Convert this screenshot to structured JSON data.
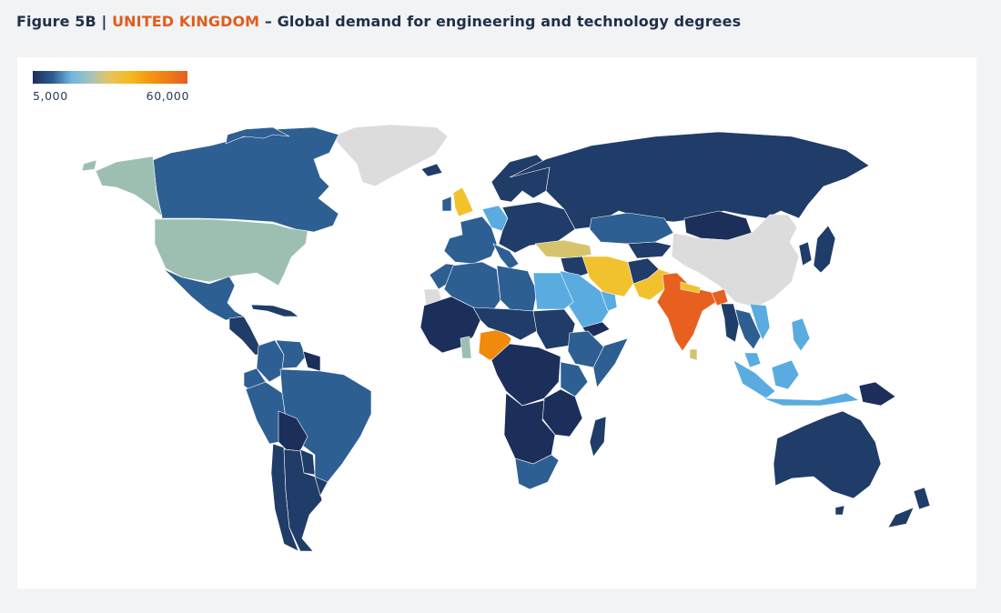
{
  "figure": {
    "label": "Figure 5B | ",
    "country": "UNITED KINGDOM",
    "subtitle": " – Global demand for engineering and technology degrees"
  },
  "legend": {
    "min_label": "5,000",
    "max_label": "60,000",
    "gradient_colors": [
      "#1c2f5a",
      "#2d5d92",
      "#6fb6e1",
      "#a8c4b8",
      "#e8c45a",
      "#f5b820",
      "#f39a10",
      "#ef7a18",
      "#e85c22"
    ]
  },
  "colors": {
    "no_data": "#dcdcdc",
    "darkest": "#1c2f5a",
    "dark_blue": "#203c68",
    "mid_blue": "#2e5f93",
    "light_blue": "#5aace0",
    "sage": "#9dbfb1",
    "mustard": "#d6c36e",
    "yellow": "#f2c12e",
    "orange": "#f08a0c",
    "red_orange": "#e8601f",
    "title_accent": "#e05d1c",
    "title_text": "#1f2f4a"
  },
  "map_data": {
    "type": "choropleth",
    "regions": [
      {
        "name": "Greenland",
        "class": "no_data"
      },
      {
        "name": "Canada",
        "class": "mid_blue"
      },
      {
        "name": "Alaska (USA)",
        "class": "sage"
      },
      {
        "name": "United States",
        "class": "sage"
      },
      {
        "name": "Mexico",
        "class": "mid_blue"
      },
      {
        "name": "Central America",
        "class": "dark_blue"
      },
      {
        "name": "Caribbean",
        "class": "dark_blue"
      },
      {
        "name": "Colombia",
        "class": "mid_blue"
      },
      {
        "name": "Venezuela",
        "class": "mid_blue"
      },
      {
        "name": "Guianas",
        "class": "darkest"
      },
      {
        "name": "Ecuador",
        "class": "mid_blue"
      },
      {
        "name": "Peru",
        "class": "mid_blue"
      },
      {
        "name": "Brazil",
        "class": "mid_blue"
      },
      {
        "name": "Bolivia",
        "class": "darkest"
      },
      {
        "name": "Paraguay",
        "class": "dark_blue"
      },
      {
        "name": "Chile",
        "class": "dark_blue"
      },
      {
        "name": "Argentina",
        "class": "dark_blue"
      },
      {
        "name": "Uruguay",
        "class": "dark_blue"
      },
      {
        "name": "United Kingdom",
        "class": "yellow"
      },
      {
        "name": "Ireland",
        "class": "mid_blue"
      },
      {
        "name": "Germany",
        "class": "light_blue"
      },
      {
        "name": "Western Europe",
        "class": "mid_blue"
      },
      {
        "name": "Scandinavia",
        "class": "dark_blue"
      },
      {
        "name": "Iceland",
        "class": "dark_blue"
      },
      {
        "name": "Eastern Europe",
        "class": "dark_blue"
      },
      {
        "name": "Russia",
        "class": "dark_blue"
      },
      {
        "name": "Turkey",
        "class": "mustard"
      },
      {
        "name": "Iran",
        "class": "yellow"
      },
      {
        "name": "Pakistan",
        "class": "yellow"
      },
      {
        "name": "Afghanistan",
        "class": "dark_blue"
      },
      {
        "name": "Kazakhstan",
        "class": "mid_blue"
      },
      {
        "name": "Central Asia",
        "class": "dark_blue"
      },
      {
        "name": "Mongolia",
        "class": "darkest"
      },
      {
        "name": "China",
        "class": "no_data"
      },
      {
        "name": "India",
        "class": "red_orange"
      },
      {
        "name": "Nepal",
        "class": "yellow"
      },
      {
        "name": "Bangladesh",
        "class": "red_orange"
      },
      {
        "name": "Sri Lanka",
        "class": "mustard"
      },
      {
        "name": "Myanmar",
        "class": "dark_blue"
      },
      {
        "name": "Thailand",
        "class": "mid_blue"
      },
      {
        "name": "Vietnam",
        "class": "light_blue"
      },
      {
        "name": "Malaysia",
        "class": "light_blue"
      },
      {
        "name": "Indonesia",
        "class": "light_blue"
      },
      {
        "name": "Philippines",
        "class": "light_blue"
      },
      {
        "name": "Papua New Guinea",
        "class": "darkest"
      },
      {
        "name": "Korea",
        "class": "dark_blue"
      },
      {
        "name": "Japan",
        "class": "dark_blue"
      },
      {
        "name": "Saudi Arabia",
        "class": "light_blue"
      },
      {
        "name": "Egypt",
        "class": "light_blue"
      },
      {
        "name": "Iraq",
        "class": "dark_blue"
      },
      {
        "name": "Gulf states",
        "class": "light_blue"
      },
      {
        "name": "Yemen",
        "class": "darkest"
      },
      {
        "name": "Morocco",
        "class": "mid_blue"
      },
      {
        "name": "Algeria",
        "class": "mid_blue"
      },
      {
        "name": "Libya",
        "class": "mid_blue"
      },
      {
        "name": "Western Sahara",
        "class": "no_data"
      },
      {
        "name": "West Africa",
        "class": "darkest"
      },
      {
        "name": "Ghana",
        "class": "sage"
      },
      {
        "name": "Nigeria",
        "class": "orange"
      },
      {
        "name": "Niger / Chad",
        "class": "dark_blue"
      },
      {
        "name": "Sudan",
        "class": "dark_blue"
      },
      {
        "name": "Ethiopia",
        "class": "mid_blue"
      },
      {
        "name": "Somalia",
        "class": "mid_blue"
      },
      {
        "name": "Kenya",
        "class": "mid_blue"
      },
      {
        "name": "Central Africa",
        "class": "darkest"
      },
      {
        "name": "East Africa",
        "class": "darkest"
      },
      {
        "name": "Southern Africa",
        "class": "darkest"
      },
      {
        "name": "South Africa",
        "class": "mid_blue"
      },
      {
        "name": "Madagascar",
        "class": "dark_blue"
      },
      {
        "name": "Australia",
        "class": "dark_blue"
      },
      {
        "name": "New Zealand",
        "class": "dark_blue"
      }
    ]
  }
}
